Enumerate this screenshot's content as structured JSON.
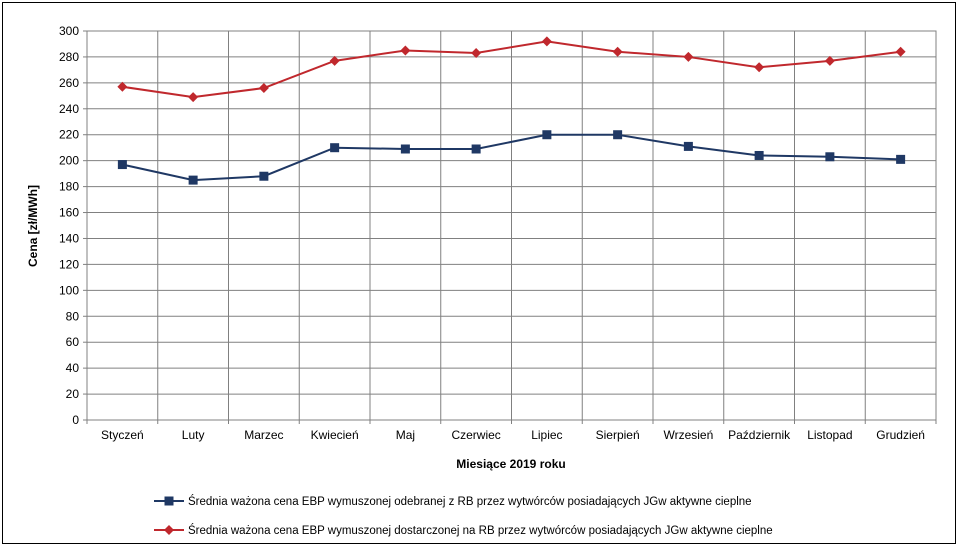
{
  "chart_data": {
    "type": "line",
    "title": "",
    "xlabel": "Miesiące 2019  roku",
    "ylabel": "Cena [zł/MWh]",
    "ylim": [
      0,
      300
    ],
    "ytick_step": 20,
    "grid": true,
    "legend_position": "bottom",
    "categories": [
      "Styczeń",
      "Luty",
      "Marzec",
      "Kwiecień",
      "Maj",
      "Czerwiec",
      "Lipiec",
      "Sierpień",
      "Wrzesień",
      "Październik",
      "Listopad",
      "Grudzień"
    ],
    "series": [
      {
        "name": "Średnia ważona cena EBP wymuszonej odebranej z RB przez wytwórców posiadających JGw aktywne cieplne",
        "marker": "square",
        "color": "#1f3864",
        "values": [
          197,
          185,
          188,
          210,
          209,
          209,
          220,
          220,
          211,
          204,
          203,
          201
        ]
      },
      {
        "name": "Średnia ważona cena EBP wymuszonej dostarczonej na RB przez wytwórców posiadających JGw aktywne cieplne",
        "marker": "diamond",
        "color": "#c0282d",
        "values": [
          257,
          249,
          256,
          277,
          285,
          283,
          292,
          284,
          280,
          272,
          277,
          284
        ]
      }
    ]
  }
}
